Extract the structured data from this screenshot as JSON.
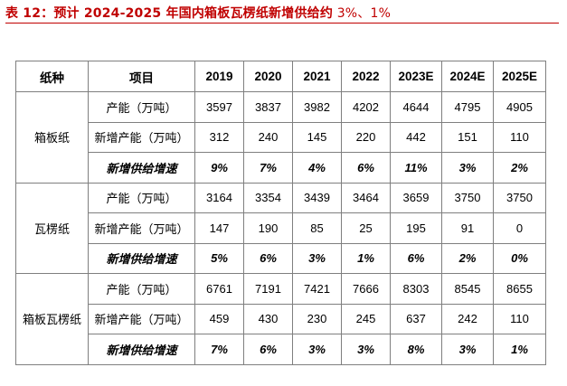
{
  "caption": {
    "label": "表 12：预计 2024-2025 年国内箱板瓦楞纸新增供给约",
    "suffix": " 3%、1%"
  },
  "table": {
    "headers": [
      "纸种",
      "项目",
      "2019",
      "2020",
      "2021",
      "2022",
      "2023E",
      "2024E",
      "2025E"
    ],
    "groups": [
      {
        "name": "箱板纸",
        "rows": [
          {
            "item": "产能（万吨）",
            "values": [
              "3597",
              "3837",
              "3982",
              "4202",
              "4644",
              "4795",
              "4905"
            ]
          },
          {
            "item": "新增产能（万吨）",
            "values": [
              "312",
              "240",
              "145",
              "220",
              "442",
              "151",
              "110"
            ]
          },
          {
            "item": "新增供给增速",
            "values": [
              "9%",
              "7%",
              "4%",
              "6%",
              "11%",
              "3%",
              "2%"
            ]
          }
        ]
      },
      {
        "name": "瓦楞纸",
        "rows": [
          {
            "item": "产能（万吨）",
            "values": [
              "3164",
              "3354",
              "3439",
              "3464",
              "3659",
              "3750",
              "3750"
            ]
          },
          {
            "item": "新增产能（万吨）",
            "values": [
              "147",
              "190",
              "85",
              "25",
              "195",
              "91",
              "0"
            ]
          },
          {
            "item": "新增供给增速",
            "values": [
              "5%",
              "6%",
              "3%",
              "1%",
              "6%",
              "2%",
              "0%"
            ]
          }
        ]
      },
      {
        "name": "箱板瓦楞纸",
        "rows": [
          {
            "item": "产能（万吨）",
            "values": [
              "6761",
              "7191",
              "7421",
              "7666",
              "8303",
              "8545",
              "8655"
            ]
          },
          {
            "item": "新增产能（万吨）",
            "values": [
              "459",
              "430",
              "230",
              "245",
              "637",
              "242",
              "110"
            ]
          },
          {
            "item": "新增供给增速",
            "values": [
              "7%",
              "6%",
              "3%",
              "3%",
              "8%",
              "3%",
              "1%"
            ]
          }
        ]
      }
    ]
  },
  "colors": {
    "caption": "#c00000",
    "border": "#7f7f7f"
  }
}
